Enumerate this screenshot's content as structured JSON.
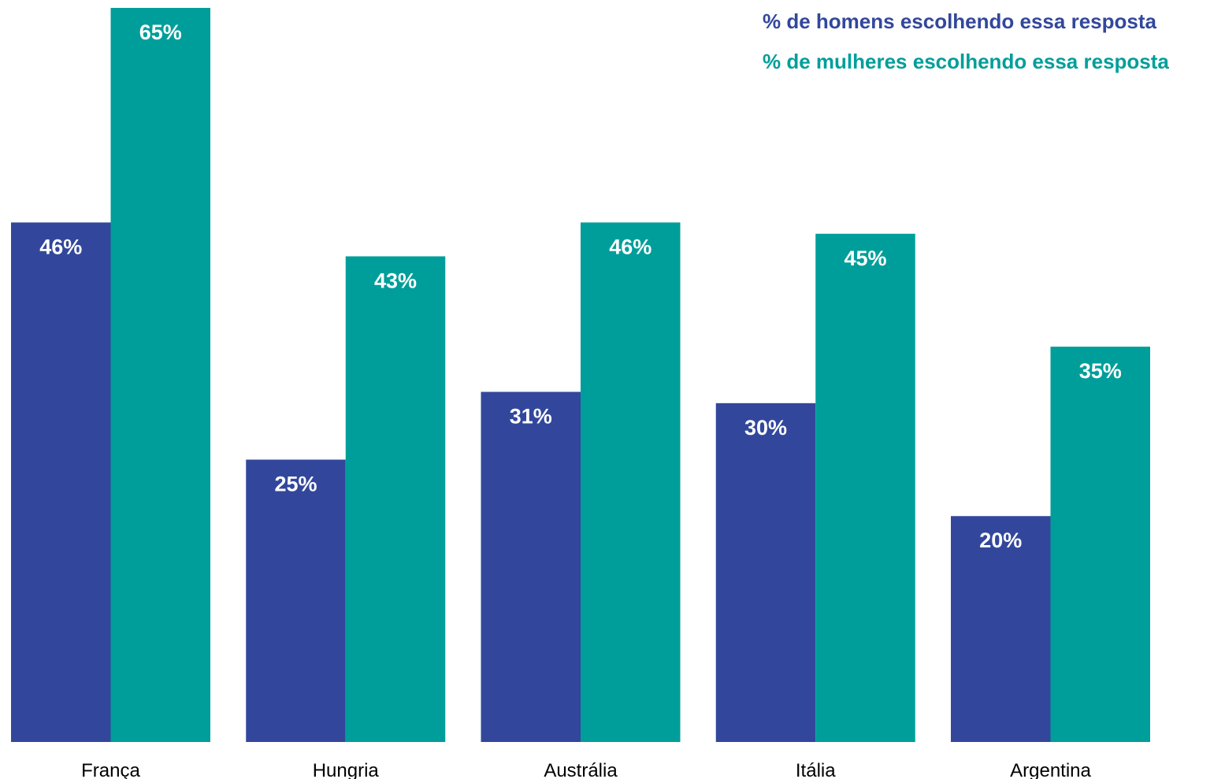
{
  "chart_data": {
    "type": "bar",
    "categories": [
      "França",
      "Hungria",
      "Austrália",
      "Itália",
      "Argentina"
    ],
    "series": [
      {
        "name": "% de homens escolhendo essa resposta",
        "values": [
          46,
          25,
          31,
          30,
          20
        ],
        "color": "#32479c"
      },
      {
        "name": "% de mulheres escolhendo essa resposta",
        "values": [
          65,
          43,
          46,
          45,
          35
        ],
        "color": "#009e9a"
      }
    ],
    "value_suffix": "%",
    "ylim": [
      0,
      65
    ],
    "legend_position": "top-right",
    "grid": false
  }
}
